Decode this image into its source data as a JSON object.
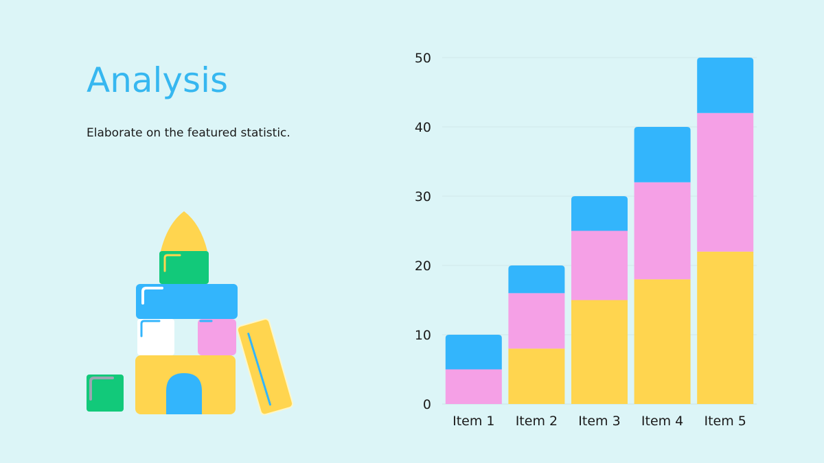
{
  "slide": {
    "title": "Analysis",
    "subtitle": "Elaborate on the featured statistic."
  },
  "colors": {
    "background": "#dcf5f7",
    "title": "#36b7f0",
    "series_bottom": "#ffd54f",
    "series_middle": "#f5a0e6",
    "series_top": "#33b5fc"
  },
  "chart_data": {
    "type": "bar",
    "stacked": true,
    "categories": [
      "Item 1",
      "Item 2",
      "Item 3",
      "Item 4",
      "Item 5"
    ],
    "series": [
      {
        "values": [
          0,
          8,
          15,
          18,
          22
        ],
        "color": "#ffd54f"
      },
      {
        "values": [
          5,
          8,
          10,
          14,
          20
        ],
        "color": "#f5a0e6"
      },
      {
        "values": [
          5,
          4,
          5,
          8,
          8
        ],
        "color": "#33b5fc"
      }
    ],
    "ylim": [
      0,
      50
    ],
    "yticks": [
      0,
      10,
      20,
      30,
      40,
      50
    ],
    "grid": true,
    "legend": "none"
  }
}
